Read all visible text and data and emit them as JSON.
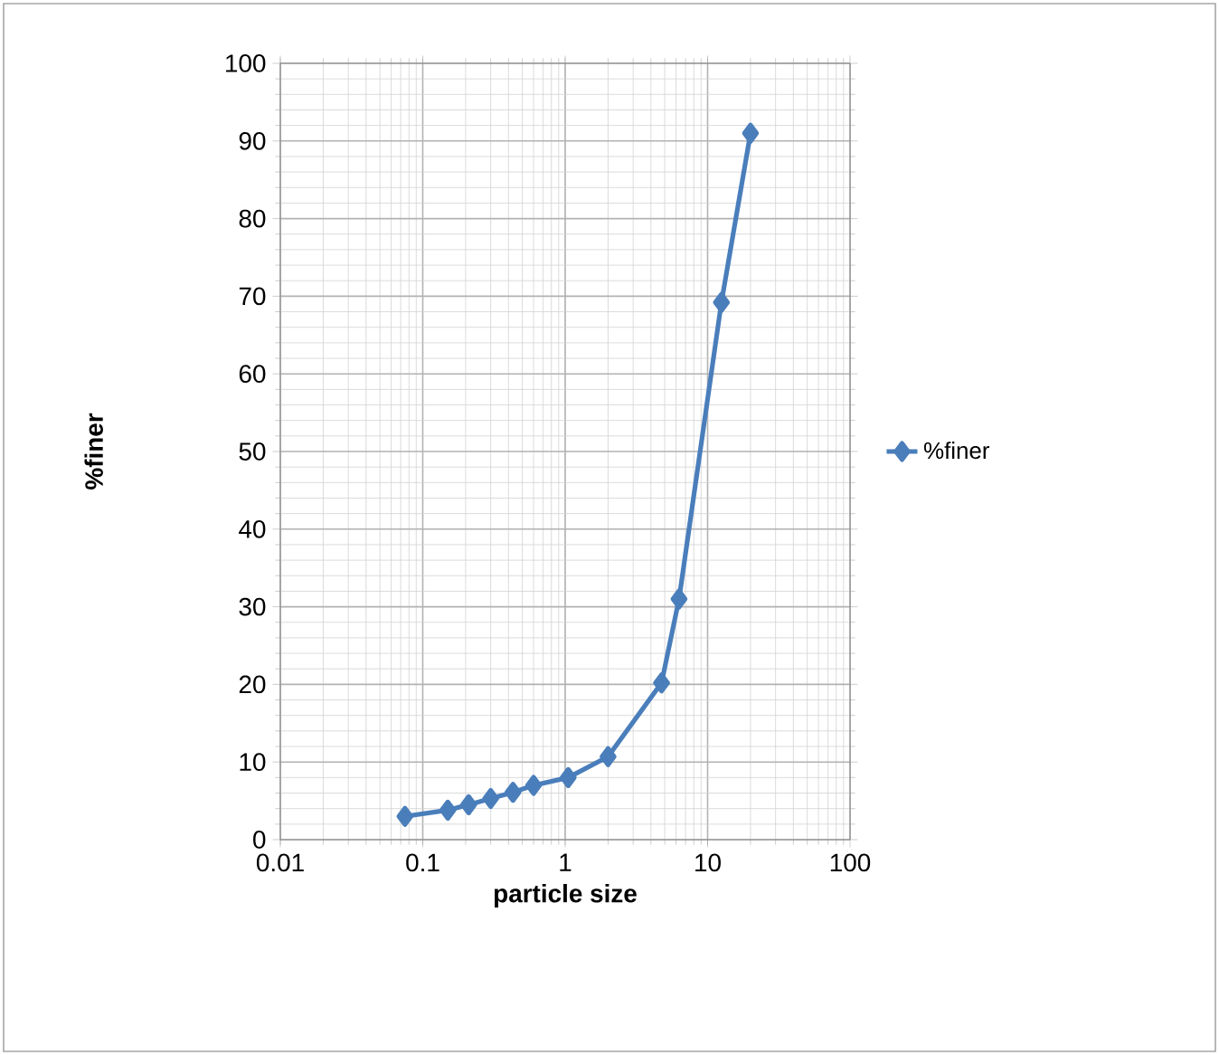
{
  "chart_data": {
    "type": "line",
    "xlabel": "particle size",
    "ylabel": "%finer",
    "x": [
      0.075,
      0.15,
      0.21,
      0.3,
      0.43,
      0.6,
      1.05,
      2.0,
      4.75,
      6.3,
      12.5,
      20
    ],
    "series": [
      {
        "name": "%finer",
        "color": "#4a7ebb",
        "values": [
          3,
          3.8,
          4.5,
          5.3,
          6.1,
          7,
          8,
          10.7,
          20.2,
          31,
          69.2,
          91
        ]
      }
    ],
    "log": "x",
    "xlim": [
      0.01,
      100
    ],
    "xticks": [
      0.01,
      0.1,
      1,
      10,
      100
    ],
    "ylim": [
      0,
      100
    ],
    "yticks": [
      0,
      10,
      20,
      30,
      40,
      50,
      60,
      70,
      80,
      90,
      100
    ],
    "grid": true,
    "legend": "right",
    "marker": "diamond",
    "line_style": "solid"
  }
}
